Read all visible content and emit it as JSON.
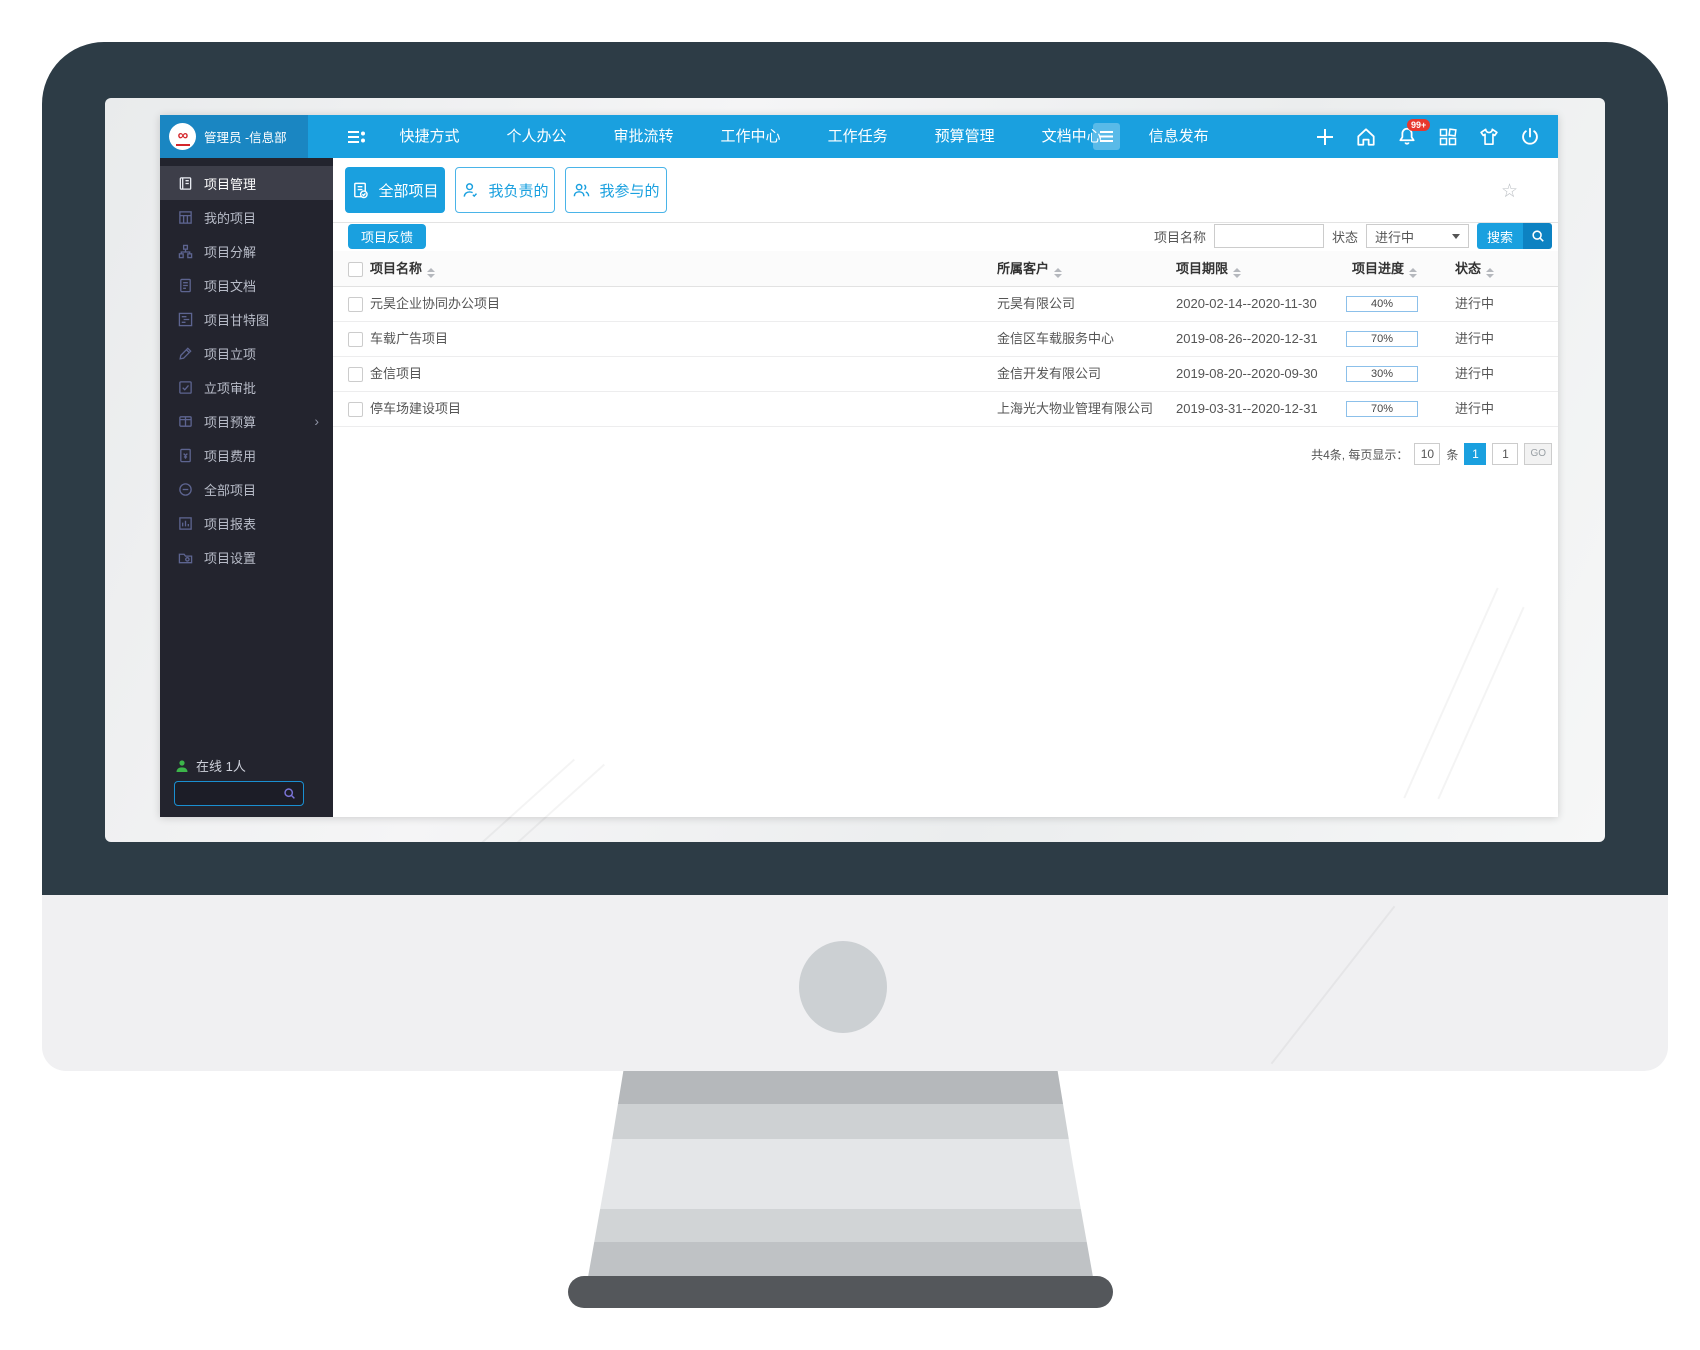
{
  "topbar": {
    "user": "管理员 -信息部",
    "nav": [
      {
        "label": "快捷方式"
      },
      {
        "label": "个人办公"
      },
      {
        "label": "审批流转"
      },
      {
        "label": "工作中心"
      },
      {
        "label": "工作任务"
      },
      {
        "label": "预算管理"
      },
      {
        "label": "文档中心"
      },
      {
        "label": "信息发布"
      }
    ],
    "notification_badge": "99+"
  },
  "sidebar": {
    "items": [
      {
        "label": "项目管理"
      },
      {
        "label": "我的项目"
      },
      {
        "label": "项目分解"
      },
      {
        "label": "项目文档"
      },
      {
        "label": "项目甘特图"
      },
      {
        "label": "项目立项"
      },
      {
        "label": "立项审批"
      },
      {
        "label": "项目预算",
        "expand": "›"
      },
      {
        "label": "项目费用"
      },
      {
        "label": "全部项目"
      },
      {
        "label": "项目报表"
      },
      {
        "label": "项目设置"
      }
    ],
    "online_text": "在线 1人"
  },
  "tabs": [
    {
      "label": "全部项目"
    },
    {
      "label": "我负责的"
    },
    {
      "label": "我参与的"
    }
  ],
  "toolbar": {
    "feedback_label": "项目反馈",
    "name_label": "项目名称",
    "name_value": "",
    "status_label": "状态",
    "status_value": "进行中",
    "search_label": "搜索"
  },
  "table": {
    "headers": [
      "项目名称",
      "所属客户",
      "项目期限",
      "项目进度",
      "状态"
    ],
    "rows": [
      {
        "name": "元昊企业协同办公项目",
        "customer": "元昊有限公司",
        "period": "2020-02-14--2020-11-30",
        "progress": "40%",
        "status": "进行中"
      },
      {
        "name": "车载广告项目",
        "customer": "金信区车载服务中心",
        "period": "2019-08-26--2020-12-31",
        "progress": "70%",
        "status": "进行中"
      },
      {
        "name": "金信项目",
        "customer": "金信开发有限公司",
        "period": "2019-08-20--2020-09-30",
        "progress": "30%",
        "status": "进行中"
      },
      {
        "name": "停车场建设项目",
        "customer": "上海光大物业管理有限公司",
        "period": "2019-03-31--2020-12-31",
        "progress": "70%",
        "status": "进行中"
      }
    ]
  },
  "pagination": {
    "summary": "共4条, 每页显示：",
    "per_page": "10",
    "unit": "条",
    "current_page": "1",
    "page_input": "1",
    "go_label": "GO"
  },
  "colors": {
    "accent_blue": "#1aa0df",
    "dark_blue": "#0d82c2",
    "sidebar_dark": "#23242e",
    "badge_red": "#e8382e",
    "progress_fill": "#72b3e6",
    "online_green": "#3cb54a"
  }
}
